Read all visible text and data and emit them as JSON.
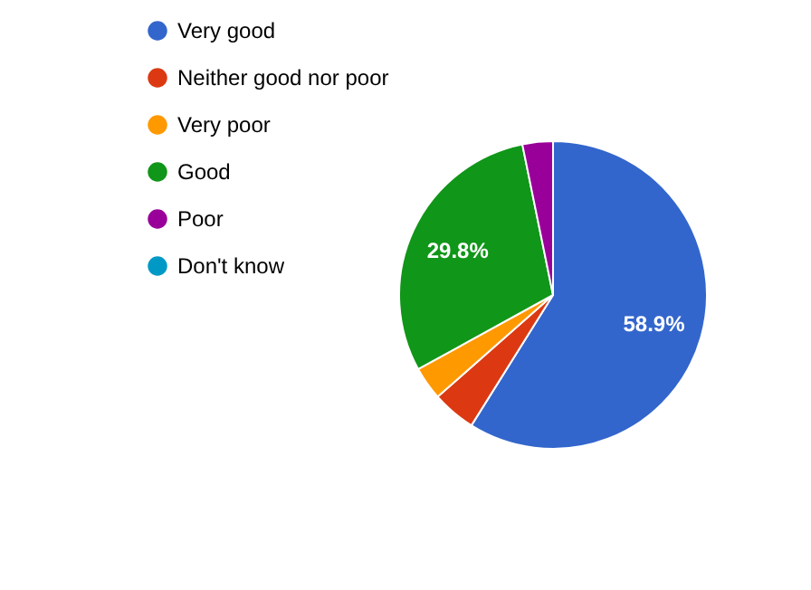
{
  "chart_data": {
    "type": "pie",
    "categories": [
      "Very good",
      "Neither good nor poor",
      "Very poor",
      "Good",
      "Poor",
      "Don't know"
    ],
    "values": [
      58.9,
      4.6,
      3.5,
      29.8,
      3.2,
      0
    ],
    "value_labels": [
      "58.9%",
      null,
      null,
      "29.8%",
      null,
      null
    ],
    "colors": [
      "#3366cc",
      "#dc3912",
      "#ff9900",
      "#109618",
      "#990099",
      "#0099c6"
    ],
    "legend": "left"
  }
}
